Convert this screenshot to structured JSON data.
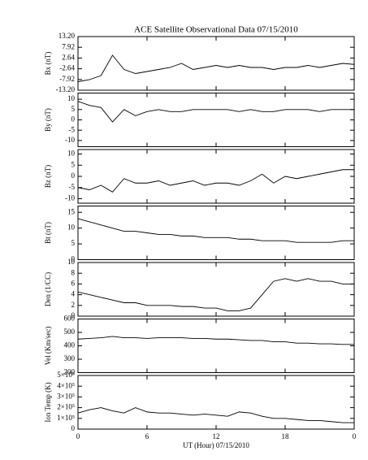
{
  "chart_data": [
    {
      "type": "line",
      "title": "ACE Satellite Observational Data   07/15/2010",
      "y_label": "Bx (nT)",
      "color": "#000000",
      "x": [
        0,
        1,
        2,
        3,
        4,
        5,
        6,
        7,
        8,
        9,
        10,
        11,
        12,
        13,
        14,
        15,
        16,
        17,
        18,
        19,
        20,
        21,
        22,
        23,
        24
      ],
      "values": [
        -9,
        -8,
        -6,
        4,
        -3,
        -5,
        -4,
        -3,
        -2,
        0,
        -3,
        -2,
        -1,
        -2,
        -1,
        -2,
        -2,
        -3,
        -2,
        -2,
        -1,
        -2,
        -1,
        0,
        -0.5
      ],
      "ylim": [
        -13.2,
        13.2
      ],
      "yticks": [
        {
          "value": -13.2,
          "label": "-13.20"
        },
        {
          "value": -7.92,
          "label": "-7.92"
        },
        {
          "value": -2.64,
          "label": "-2.64"
        },
        {
          "value": 2.64,
          "label": "2.64"
        },
        {
          "value": 7.92,
          "label": "7.92"
        },
        {
          "value": 13.2,
          "label": "13.20"
        }
      ]
    },
    {
      "type": "line",
      "y_label": "By (nT)",
      "color": "#000000",
      "x": [
        0,
        1,
        2,
        3,
        4,
        5,
        6,
        7,
        8,
        9,
        10,
        11,
        12,
        13,
        14,
        15,
        16,
        17,
        18,
        19,
        20,
        21,
        22,
        23,
        24
      ],
      "values": [
        9,
        7,
        6,
        -1,
        5,
        2,
        4,
        5,
        4,
        4,
        5,
        5,
        5,
        5,
        4,
        5,
        4,
        4,
        5,
        5,
        5,
        4,
        5,
        5,
        5
      ],
      "ylim": [
        -13,
        13
      ],
      "yticks": [
        -10,
        -5,
        0,
        5,
        10
      ]
    },
    {
      "type": "line",
      "y_label": "Bz (nT)",
      "color": "#000000",
      "x": [
        0,
        1,
        2,
        3,
        4,
        5,
        6,
        7,
        8,
        9,
        10,
        11,
        12,
        13,
        14,
        15,
        16,
        17,
        18,
        19,
        20,
        21,
        22,
        23,
        24
      ],
      "values": [
        -5,
        -6,
        -4,
        -7,
        -1,
        -3,
        -3,
        -2,
        -4,
        -3,
        -2,
        -4,
        -3,
        -3,
        -4,
        -2,
        1,
        -3,
        0,
        -1,
        0,
        1,
        2,
        3,
        3
      ],
      "ylim": [
        -12,
        12
      ],
      "yticks": [
        -10,
        -5,
        0,
        5,
        10
      ]
    },
    {
      "type": "line",
      "y_label": "Bt (nT)",
      "color": "#000000",
      "x": [
        0,
        1,
        2,
        3,
        4,
        5,
        6,
        7,
        8,
        9,
        10,
        11,
        12,
        13,
        14,
        15,
        16,
        17,
        18,
        19,
        20,
        21,
        22,
        23,
        24
      ],
      "values": [
        13,
        12,
        11,
        10,
        9,
        9,
        8.5,
        8,
        8,
        7.5,
        7.5,
        7,
        7,
        7,
        6.5,
        6.5,
        6,
        6,
        6,
        5.5,
        5.5,
        5.5,
        5.5,
        6,
        6
      ],
      "ylim": [
        0,
        17
      ],
      "yticks": [
        0,
        5,
        10,
        15
      ]
    },
    {
      "type": "line",
      "y_label": "Den (1/CC)",
      "color": "#000000",
      "x": [
        0,
        1,
        2,
        3,
        4,
        5,
        6,
        7,
        8,
        9,
        10,
        11,
        12,
        13,
        14,
        15,
        16,
        17,
        18,
        19,
        20,
        21,
        22,
        23,
        24
      ],
      "values": [
        4.5,
        4,
        3.5,
        3,
        2.5,
        2.5,
        2,
        2,
        2,
        1.8,
        1.8,
        1.5,
        1.5,
        1,
        1,
        1.5,
        4,
        6.5,
        7,
        6.5,
        7,
        6.5,
        6.5,
        6,
        6
      ],
      "ylim": [
        0,
        10
      ],
      "yticks": [
        0,
        2,
        4,
        6,
        8,
        10
      ]
    },
    {
      "type": "line",
      "y_label": "Vel (Km/sec)",
      "color": "#000000",
      "x": [
        0,
        1,
        2,
        3,
        4,
        5,
        6,
        7,
        8,
        9,
        10,
        11,
        12,
        13,
        14,
        15,
        16,
        17,
        18,
        19,
        20,
        21,
        22,
        23,
        24
      ],
      "values": [
        450,
        455,
        460,
        470,
        460,
        460,
        455,
        460,
        460,
        460,
        455,
        455,
        450,
        450,
        445,
        440,
        440,
        430,
        430,
        420,
        420,
        415,
        415,
        410,
        410
      ],
      "ylim": [
        200,
        600
      ],
      "yticks": [
        200,
        300,
        400,
        500,
        600
      ]
    },
    {
      "type": "line",
      "y_label": "Ion Temp (K)",
      "x_label": "UT (Hour)   07/15/2010",
      "color": "#000000",
      "x": [
        0,
        1,
        2,
        3,
        4,
        5,
        6,
        7,
        8,
        9,
        10,
        11,
        12,
        13,
        14,
        15,
        16,
        17,
        18,
        19,
        20,
        21,
        22,
        23,
        24
      ],
      "values": [
        150000,
        180000,
        200000,
        170000,
        150000,
        200000,
        160000,
        150000,
        150000,
        140000,
        130000,
        140000,
        130000,
        120000,
        160000,
        150000,
        120000,
        100000,
        100000,
        90000,
        80000,
        80000,
        70000,
        60000,
        60000
      ],
      "ylim": [
        0,
        500000
      ],
      "yticks": [
        0,
        {
          "value": 100000,
          "label": "1×10⁵"
        },
        {
          "value": 200000,
          "label": "2×10⁵"
        },
        {
          "value": 300000,
          "label": "3×10⁵"
        },
        {
          "value": 400000,
          "label": "4×10⁵"
        },
        {
          "value": 500000,
          "label": "5×10⁵"
        }
      ],
      "xlim": [
        0,
        24
      ],
      "xticks": [
        0,
        6,
        12,
        18,
        {
          "value": 24,
          "label": "0"
        }
      ]
    }
  ]
}
